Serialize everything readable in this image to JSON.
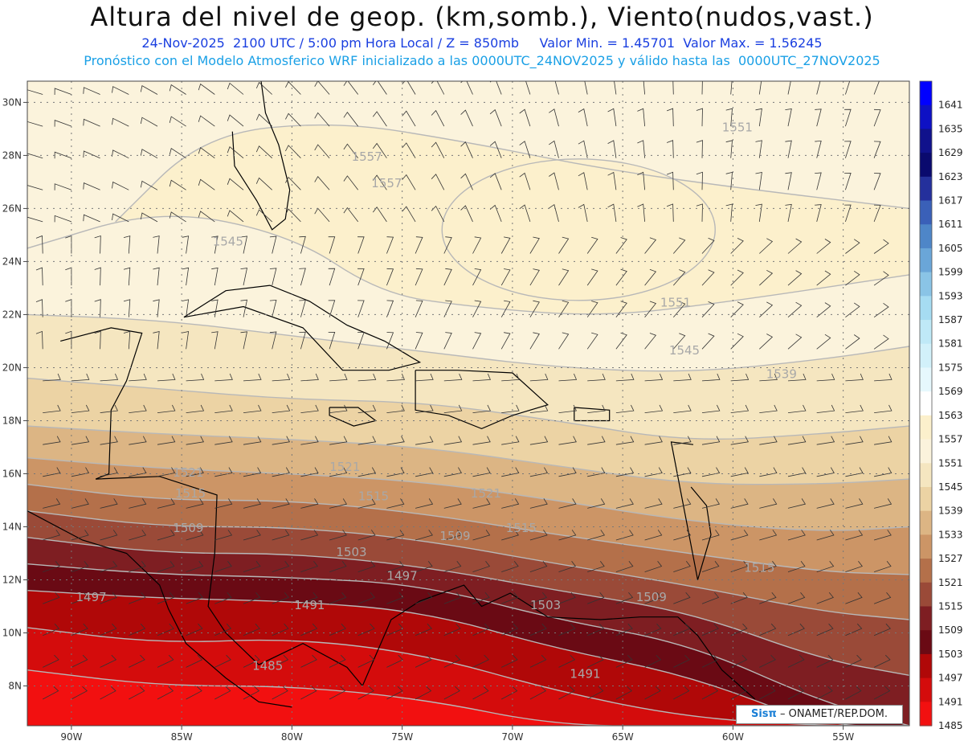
{
  "title": "Altura del nivel de geop. (km,somb.), Viento(nudos,vast.)",
  "subtitle_line1": "24-Nov-2025  2100 UTC / 5:00 pm Hora Local / Z = 850mb     Valor Min. = 1.45701  Valor Max. = 1.56245",
  "subtitle_line2": "Pronóstico con el Modelo Atmosferico WRF inicializado a las 0000UTC_24NOV2025 y válido hasta las  0000UTC_27NOV2025",
  "credit": {
    "brand": "Sisπ",
    "text": "– ONAMET/REP.DOM."
  },
  "chart_data": {
    "type": "heatmap",
    "x_axis": {
      "ticks": [
        "90W",
        "85W",
        "80W",
        "75W",
        "70W",
        "65W",
        "60W",
        "55W"
      ],
      "range": [
        -92,
        -52
      ]
    },
    "y_axis": {
      "ticks": [
        "8N",
        "10N",
        "12N",
        "14N",
        "16N",
        "18N",
        "20N",
        "22N",
        "24N",
        "26N",
        "28N",
        "30N"
      ],
      "range": [
        6.5,
        30.8
      ]
    },
    "grid": true,
    "colorbar": {
      "levels": [
        "1641",
        "1635",
        "1629",
        "1623",
        "1617",
        "1611",
        "1605",
        "1599",
        "1593",
        "1587",
        "1581",
        "1575",
        "1569",
        "1563",
        "1557",
        "1551",
        "1545",
        "1539",
        "1533",
        "1527",
        "1521",
        "1515",
        "1509",
        "1503",
        "1497",
        "1491",
        "1485"
      ],
      "colors": [
        "#0000ff",
        "#0e11c4",
        "#10128c",
        "#0a0a6e",
        "#24309c",
        "#3a60b8",
        "#4e86c8",
        "#6aa6d8",
        "#8ac4e6",
        "#a6dcf2",
        "#bfe9f7",
        "#d2f1fa",
        "#e6f8fd",
        "#ffffff",
        "#fcf0cc",
        "#fbf3dc",
        "#f5e6c0",
        "#ecd3a4",
        "#dcb584",
        "#cc9566",
        "#b4704a",
        "#9a4a38",
        "#7e1e22",
        "#6a0a14",
        "#b00808",
        "#d40c0c",
        "#f21010"
      ]
    },
    "contour_labels": [
      {
        "text": "1551",
        "lon": -59.8,
        "lat": 28.9
      },
      {
        "text": "1557",
        "lon": -76.6,
        "lat": 27.8
      },
      {
        "text": "1557",
        "lon": -75.7,
        "lat": 26.8
      },
      {
        "text": "1545",
        "lon": -82.9,
        "lat": 24.6
      },
      {
        "text": "1551",
        "lon": -62.6,
        "lat": 22.3
      },
      {
        "text": "1545",
        "lon": -62.2,
        "lat": 20.5
      },
      {
        "text": "1539",
        "lon": -57.8,
        "lat": 19.6
      },
      {
        "text": "1521",
        "lon": -77.6,
        "lat": 16.1
      },
      {
        "text": "1521",
        "lon": -84.7,
        "lat": 15.9
      },
      {
        "text": "1515",
        "lon": -84.6,
        "lat": 15.1
      },
      {
        "text": "1515",
        "lon": -76.3,
        "lat": 15.0
      },
      {
        "text": "1521",
        "lon": -71.2,
        "lat": 15.1
      },
      {
        "text": "1509",
        "lon": -84.7,
        "lat": 13.8
      },
      {
        "text": "1515",
        "lon": -69.6,
        "lat": 13.8
      },
      {
        "text": "1509",
        "lon": -72.6,
        "lat": 13.5
      },
      {
        "text": "1503",
        "lon": -77.3,
        "lat": 12.9
      },
      {
        "text": "1497",
        "lon": -89.1,
        "lat": 11.2
      },
      {
        "text": "1497",
        "lon": -75.0,
        "lat": 12.0
      },
      {
        "text": "1491",
        "lon": -79.2,
        "lat": 10.9
      },
      {
        "text": "1503",
        "lon": -68.5,
        "lat": 10.9
      },
      {
        "text": "1509",
        "lon": -63.7,
        "lat": 11.2
      },
      {
        "text": "1515",
        "lon": -58.8,
        "lat": 12.3
      },
      {
        "text": "1485",
        "lon": -81.1,
        "lat": 8.6
      },
      {
        "text": "1491",
        "lon": -66.7,
        "lat": 8.3
      }
    ]
  }
}
